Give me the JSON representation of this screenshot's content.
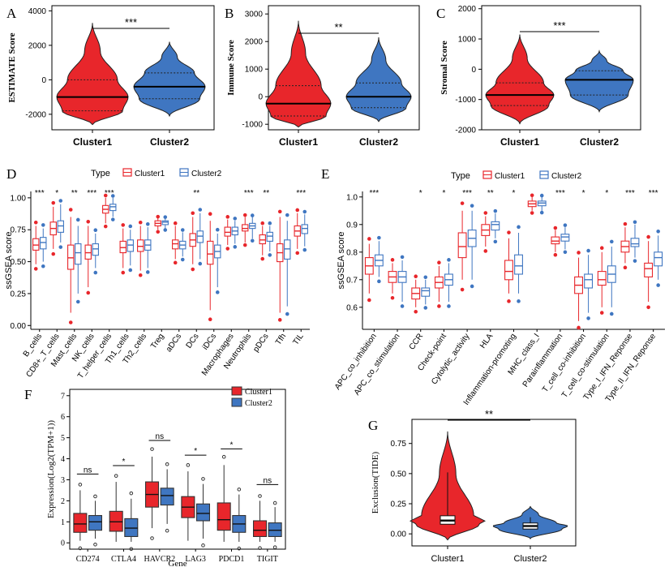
{
  "colors": {
    "cluster1": "#e8262b",
    "cluster2": "#3f76c1",
    "c1_light": "#f25a5e",
    "c2_light": "#5b8fd6",
    "axis": "#000000"
  },
  "chart_data": [
    {
      "panel": "A",
      "type": "violin",
      "ylabel": "ESTIMATE Score",
      "yticks": [
        -2000,
        0,
        2000,
        4000
      ],
      "ylim": [
        -2900,
        4300
      ],
      "categories": [
        "Cluster1",
        "Cluster2"
      ],
      "groups": [
        {
          "name": "Cluster1",
          "min": -2600,
          "q1": -1800,
          "median": -1000,
          "q3": 0,
          "max": 3300
        },
        {
          "name": "Cluster2",
          "min": -2100,
          "q1": -1100,
          "median": -400,
          "q3": 400,
          "max": 2200
        }
      ],
      "significance": "***"
    },
    {
      "panel": "B",
      "type": "violin",
      "ylabel": "Immune Score",
      "yticks": [
        -1000,
        0,
        1000,
        2000,
        3000
      ],
      "ylim": [
        -1200,
        3300
      ],
      "categories": [
        "Cluster1",
        "Cluster2"
      ],
      "groups": [
        {
          "name": "Cluster1",
          "min": -1100,
          "q1": -700,
          "median": -250,
          "q3": 400,
          "max": 2750
        },
        {
          "name": "Cluster2",
          "min": -900,
          "q1": -400,
          "median": 0,
          "q3": 500,
          "max": 2150
        }
      ],
      "significance": "**"
    },
    {
      "panel": "C",
      "type": "violin",
      "ylabel": "Stromal Score",
      "yticks": [
        -2000,
        -1000,
        0,
        1000,
        2000
      ],
      "ylim": [
        -2000,
        2100
      ],
      "categories": [
        "Cluster1",
        "Cluster2"
      ],
      "groups": [
        {
          "name": "Cluster1",
          "min": -1800,
          "q1": -1200,
          "median": -850,
          "q3": -450,
          "max": 1150
        },
        {
          "name": "Cluster2",
          "min": -1400,
          "q1": -850,
          "median": -350,
          "q3": -50,
          "max": 600
        }
      ],
      "significance": "***"
    },
    {
      "panel": "D",
      "type": "boxplot",
      "ylabel": "ssGSEA score",
      "legend_title": "Type",
      "series_names": [
        "Cluster1",
        "Cluster2"
      ],
      "yticks": [
        0.0,
        0.25,
        0.5,
        0.75,
        1.0
      ],
      "ylim": [
        -0.03,
        1.05
      ],
      "categories": [
        "B_cells",
        "CD8+_T_cells",
        "Mast_cells",
        "NK_cells",
        "T_helper_cells",
        "Th1_cells",
        "Th2_cells",
        "Treg",
        "aDCs",
        "DCs",
        "iDCs",
        "Macrophages",
        "Neutrophils",
        "pDCs",
        "Tfh",
        "TIL"
      ],
      "significance": [
        "***",
        "*",
        "**",
        "***",
        "***",
        "",
        "",
        "",
        "",
        "**",
        "",
        "",
        "***",
        "**",
        "",
        "***"
      ],
      "series": [
        {
          "name": "Cluster1",
          "stats": [
            [
              0.48,
              0.59,
              0.63,
              0.68,
              0.78
            ],
            [
              0.6,
              0.71,
              0.76,
              0.81,
              0.93
            ],
            [
              0.1,
              0.44,
              0.53,
              0.63,
              0.85
            ],
            [
              0.3,
              0.52,
              0.57,
              0.63,
              0.78
            ],
            [
              0.8,
              0.88,
              0.91,
              0.94,
              1.0
            ],
            [
              0.45,
              0.57,
              0.61,
              0.66,
              0.76
            ],
            [
              0.43,
              0.58,
              0.62,
              0.67,
              0.78
            ],
            [
              0.75,
              0.78,
              0.8,
              0.82,
              0.84
            ],
            [
              0.52,
              0.6,
              0.64,
              0.67,
              0.78
            ],
            [
              0.48,
              0.62,
              0.67,
              0.72,
              0.85
            ],
            [
              0.12,
              0.48,
              0.56,
              0.66,
              0.82
            ],
            [
              0.63,
              0.7,
              0.73,
              0.77,
              0.83
            ],
            [
              0.65,
              0.74,
              0.76,
              0.79,
              0.85
            ],
            [
              0.55,
              0.64,
              0.67,
              0.71,
              0.78
            ],
            [
              0.1,
              0.5,
              0.57,
              0.64,
              0.85
            ],
            [
              0.6,
              0.7,
              0.74,
              0.78,
              0.88
            ]
          ]
        },
        {
          "name": "Cluster2",
          "stats": [
            [
              0.5,
              0.6,
              0.65,
              0.69,
              0.76
            ],
            [
              0.65,
              0.73,
              0.78,
              0.82,
              0.95
            ],
            [
              0.25,
              0.48,
              0.57,
              0.64,
              0.78
            ],
            [
              0.45,
              0.55,
              0.6,
              0.64,
              0.72
            ],
            [
              0.85,
              0.9,
              0.93,
              0.95,
              1.0
            ],
            [
              0.47,
              0.58,
              0.63,
              0.67,
              0.75
            ],
            [
              0.45,
              0.59,
              0.63,
              0.67,
              0.77
            ],
            [
              0.76,
              0.79,
              0.81,
              0.82,
              0.84
            ],
            [
              0.54,
              0.6,
              0.63,
              0.66,
              0.73
            ],
            [
              0.52,
              0.65,
              0.7,
              0.74,
              0.88
            ],
            [
              0.3,
              0.53,
              0.58,
              0.63,
              0.72
            ],
            [
              0.64,
              0.71,
              0.74,
              0.77,
              0.82
            ],
            [
              0.68,
              0.76,
              0.78,
              0.8,
              0.85
            ],
            [
              0.58,
              0.66,
              0.7,
              0.73,
              0.78
            ],
            [
              0.15,
              0.52,
              0.6,
              0.67,
              0.82
            ],
            [
              0.62,
              0.72,
              0.76,
              0.79,
              0.87
            ]
          ]
        }
      ]
    },
    {
      "panel": "E",
      "type": "boxplot",
      "ylabel": "ssGSEA score",
      "legend_title": "Type",
      "series_names": [
        "Cluster1",
        "Cluster2"
      ],
      "yticks": [
        0.6,
        0.7,
        0.8,
        0.9,
        1.0
      ],
      "ylim": [
        0.52,
        1.02
      ],
      "categories": [
        "APC_co_inhibition",
        "APC_co_stimulation",
        "CCR",
        "Check-point",
        "Cytolytic_activity",
        "HLA",
        "Inflammation-promoting",
        "MHC_class_I",
        "Parainflammation",
        "T_cell_co-inhibition",
        "T_cell_co-stimulation",
        "Type_I_IFN_Reponse",
        "Type_II_IFN_Reponse"
      ],
      "significance": [
        "***",
        "",
        "*",
        "*",
        "***",
        "**",
        "*",
        "",
        "***",
        "*",
        "*",
        "***",
        "***"
      ],
      "series": [
        {
          "name": "Cluster1",
          "stats": [
            [
              0.65,
              0.72,
              0.75,
              0.78,
              0.83
            ],
            [
              0.65,
              0.69,
              0.71,
              0.73,
              0.76
            ],
            [
              0.6,
              0.63,
              0.65,
              0.67,
              0.7
            ],
            [
              0.62,
              0.67,
              0.69,
              0.71,
              0.75
            ],
            [
              0.7,
              0.78,
              0.82,
              0.87,
              0.95
            ],
            [
              0.82,
              0.86,
              0.88,
              0.9,
              0.93
            ],
            [
              0.65,
              0.7,
              0.73,
              0.77,
              0.85
            ],
            [
              0.95,
              0.965,
              0.975,
              0.985,
              1.0
            ],
            [
              0.8,
              0.83,
              0.84,
              0.855,
              0.88
            ],
            [
              0.55,
              0.65,
              0.68,
              0.71,
              0.78
            ],
            [
              0.6,
              0.68,
              0.7,
              0.73,
              0.8
            ],
            [
              0.76,
              0.8,
              0.82,
              0.84,
              0.89
            ],
            [
              0.62,
              0.71,
              0.74,
              0.76,
              0.84
            ]
          ]
        },
        {
          "name": "Cluster2",
          "stats": [
            [
              0.71,
              0.75,
              0.77,
              0.79,
              0.84
            ],
            [
              0.62,
              0.69,
              0.71,
              0.73,
              0.77
            ],
            [
              0.61,
              0.64,
              0.66,
              0.67,
              0.7
            ],
            [
              0.62,
              0.68,
              0.7,
              0.72,
              0.76
            ],
            [
              0.7,
              0.82,
              0.85,
              0.88,
              0.95
            ],
            [
              0.85,
              0.88,
              0.9,
              0.91,
              0.94
            ],
            [
              0.65,
              0.72,
              0.75,
              0.79,
              0.87
            ],
            [
              0.95,
              0.968,
              0.978,
              0.985,
              1.0
            ],
            [
              0.81,
              0.84,
              0.855,
              0.865,
              0.89
            ],
            [
              0.58,
              0.67,
              0.7,
              0.72,
              0.79
            ],
            [
              0.6,
              0.69,
              0.72,
              0.75,
              0.82
            ],
            [
              0.78,
              0.82,
              0.83,
              0.85,
              0.9
            ],
            [
              0.7,
              0.75,
              0.78,
              0.8,
              0.86
            ]
          ]
        }
      ]
    },
    {
      "panel": "F",
      "type": "boxplot",
      "ylabel": "Expression(Log2(TPM+1))",
      "xlabel": "Gene",
      "series_names": [
        "Cluster1",
        "Cluster2"
      ],
      "yticks": [
        0,
        1,
        2,
        3,
        4,
        5,
        6,
        7
      ],
      "ylim": [
        -0.3,
        7.3
      ],
      "categories": [
        "CD274",
        "CTLA4",
        "HAVCR2",
        "LAG3",
        "PDCD1",
        "TIGIT"
      ],
      "significance": [
        "ns",
        "*",
        "ns",
        "*",
        "*",
        "ns"
      ],
      "series": [
        {
          "name": "Cluster1",
          "stats": [
            [
              0.1,
              0.5,
              0.9,
              1.4,
              2.5
            ],
            [
              0.05,
              0.55,
              1.0,
              1.5,
              2.9
            ],
            [
              0.7,
              1.7,
              2.3,
              2.9,
              4.1
            ],
            [
              0.1,
              1.2,
              1.7,
              2.2,
              3.4
            ],
            [
              0.05,
              0.6,
              1.1,
              1.9,
              3.7
            ],
            [
              0.05,
              0.3,
              0.6,
              1.05,
              2.0
            ]
          ]
        },
        {
          "name": "Cluster2",
          "stats": [
            [
              0.2,
              0.6,
              1.0,
              1.3,
              2.0
            ],
            [
              0.05,
              0.3,
              0.7,
              1.15,
              2.1
            ],
            [
              0.9,
              1.8,
              2.25,
              2.6,
              3.5
            ],
            [
              0.2,
              1.05,
              1.4,
              1.85,
              2.8
            ],
            [
              0.05,
              0.5,
              0.9,
              1.3,
              2.3
            ],
            [
              0.05,
              0.3,
              0.6,
              0.95,
              1.7
            ]
          ]
        }
      ]
    },
    {
      "panel": "G",
      "type": "violin",
      "ylabel": "Exclusion(TIDE)",
      "yticks": [
        0.0,
        0.25,
        0.5,
        0.75
      ],
      "ylim": [
        -0.1,
        0.95
      ],
      "categories": [
        "Cluster1",
        "Cluster2"
      ],
      "groups": [
        {
          "name": "Cluster1",
          "min": -0.05,
          "q1": 0.08,
          "median": 0.11,
          "q3": 0.15,
          "max": 0.85
        },
        {
          "name": "Cluster2",
          "min": -0.04,
          "q1": 0.04,
          "median": 0.065,
          "q3": 0.09,
          "max": 0.23
        }
      ],
      "significance": "**"
    }
  ]
}
